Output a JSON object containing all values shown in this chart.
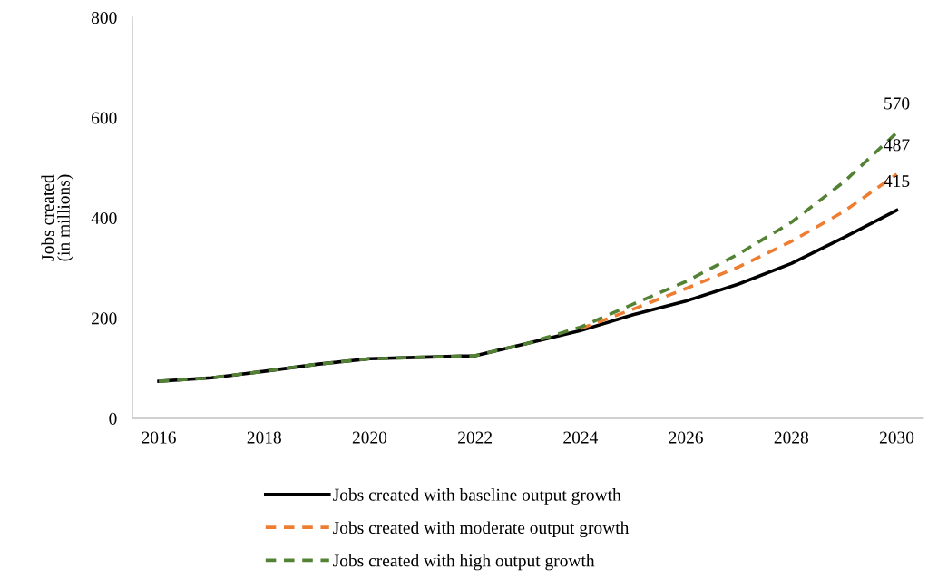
{
  "chart_data": {
    "type": "line",
    "ylabel": "Jobs created\n(in millions)",
    "x": [
      2016,
      2017,
      2018,
      2019,
      2020,
      2021,
      2022,
      2023,
      2024,
      2025,
      2026,
      2027,
      2028,
      2029,
      2030
    ],
    "xlim": [
      2015.5,
      2030.5
    ],
    "xticks": [
      2016,
      2018,
      2020,
      2022,
      2024,
      2026,
      2028,
      2030
    ],
    "ylim": [
      0,
      800
    ],
    "yticks": [
      0,
      200,
      400,
      600,
      800
    ],
    "grid": false,
    "legend": "bottom",
    "series": [
      {
        "name": "Jobs created with baseline output growth",
        "color": "#000000",
        "line_style": "solid",
        "values": [
          74,
          81,
          94,
          108,
          119,
          122,
          125,
          150,
          175,
          207,
          234,
          268,
          309,
          361,
          415
        ],
        "value_labels": [
          null,
          null,
          null,
          null,
          null,
          null,
          null,
          null,
          null,
          null,
          null,
          null,
          null,
          null,
          "415"
        ]
      },
      {
        "name": "Jobs created with moderate output growth",
        "color": "#ed7d31",
        "line_style": "dashed",
        "values": [
          null,
          null,
          null,
          null,
          null,
          null,
          null,
          null,
          179,
          218,
          259,
          302,
          353,
          413,
          487
        ],
        "value_labels": [
          null,
          null,
          null,
          null,
          null,
          null,
          null,
          null,
          null,
          null,
          null,
          null,
          null,
          null,
          "487"
        ]
      },
      {
        "name": "Jobs created with high output growth",
        "color": "#548235",
        "line_style": "dashed",
        "values": [
          74,
          81,
          94,
          108,
          119,
          122,
          125,
          150,
          182,
          228,
          273,
          328,
          391,
          472,
          570
        ],
        "value_labels": [
          null,
          null,
          null,
          null,
          null,
          null,
          null,
          null,
          null,
          null,
          null,
          null,
          null,
          null,
          "570"
        ]
      }
    ]
  }
}
